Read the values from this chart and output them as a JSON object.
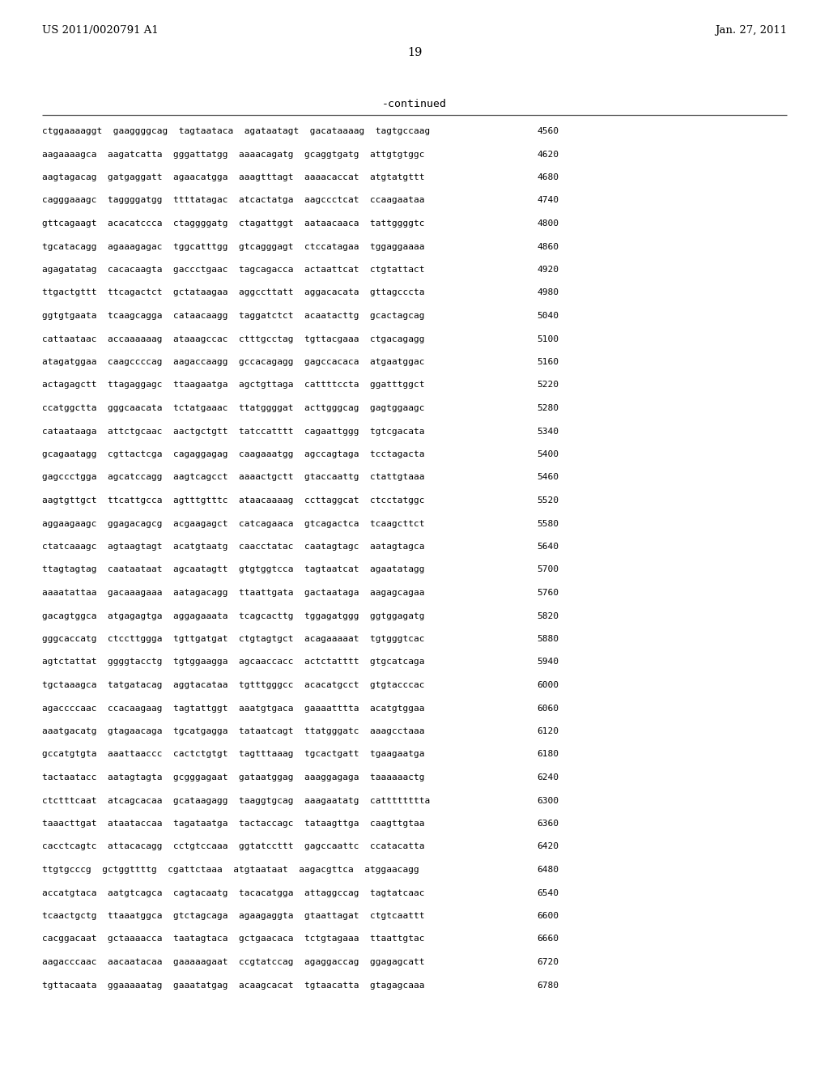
{
  "header_left": "US 2011/0020791 A1",
  "header_right": "Jan. 27, 2011",
  "page_number": "19",
  "continued_label": "-continued",
  "background_color": "#ffffff",
  "text_color": "#000000",
  "font_size_header": 9.5,
  "font_size_page": 10.5,
  "font_size_continued": 9.5,
  "font_size_sequence": 8.0,
  "sequence_lines": [
    [
      "ctggaaaaggt  gaaggggcag  tagtaataca  agataatagt  gacataaaag  tagtgccaag",
      "4560"
    ],
    [
      "aagaaaagca  aagatcatta  gggattatgg  aaaacagatg  gcaggtgatg  attgtgtggc",
      "4620"
    ],
    [
      "aagtagacag  gatgaggatt  agaacatgga  aaagtttagt  aaaacaccat  atgtatgttt",
      "4680"
    ],
    [
      "cagggaaagc  taggggatgg  ttttatagac  atcactatga  aagccctcat  ccaagaataa",
      "4740"
    ],
    [
      "gttcagaagt  acacatccca  ctaggggatg  ctagattggt  aataacaaca  tattggggtc",
      "4800"
    ],
    [
      "tgcatacagg  agaaagagac  tggcatttgg  gtcagggagt  ctccatagaa  tggaggaaaa",
      "4860"
    ],
    [
      "agagatatag  cacacaagta  gaccctgaac  tagcagacca  actaattcat  ctgtattact",
      "4920"
    ],
    [
      "ttgactgttt  ttcagactct  gctataagaa  aggccttatt  aggacacata  gttagcccta",
      "4980"
    ],
    [
      "ggtgtgaata  tcaagcagga  cataacaagg  taggatctct  acaatacttg  gcactagcag",
      "5040"
    ],
    [
      "cattaataac  accaaaaaag  ataaagccac  ctttgcctag  tgttacgaaa  ctgacagagg",
      "5100"
    ],
    [
      "atagatggaa  caagccccag  aagaccaagg  gccacagagg  gagccacaca  atgaatggac",
      "5160"
    ],
    [
      "actagagctt  ttagaggagc  ttaagaatga  agctgttaga  cattttccta  ggatttggct",
      "5220"
    ],
    [
      "ccatggctta  gggcaacata  tctatgaaac  ttatggggat  acttgggcag  gagtggaagc",
      "5280"
    ],
    [
      "cataataaga  attctgcaac  aactgctgtt  tatccatttt  cagaattggg  tgtcgacata",
      "5340"
    ],
    [
      "gcagaatagg  cgttactcga  cagaggagag  caagaaatgg  agccagtaga  tcctagacta",
      "5400"
    ],
    [
      "gagccctgga  agcatccagg  aagtcagcct  aaaactgctt  gtaccaattg  ctattgtaaa",
      "5460"
    ],
    [
      "aagtgttgct  ttcattgcca  agtttgtttc  ataacaaaag  ccttaggcat  ctcctatggc",
      "5520"
    ],
    [
      "aggaagaagc  ggagacagcg  acgaagagct  catcagaaca  gtcagactca  tcaagcttct",
      "5580"
    ],
    [
      "ctatcaaagc  agtaagtagt  acatgtaatg  caacctatac  caatagtagc  aatagtagca",
      "5640"
    ],
    [
      "ttagtagtag  caataataat  agcaatagtt  gtgtggtcca  tagtaatcat  agaatatagg",
      "5700"
    ],
    [
      "aaaatattaa  gacaaagaaa  aatagacagg  ttaattgata  gactaataga  aagagcagaa",
      "5760"
    ],
    [
      "gacagtggca  atgagagtga  aggagaaata  tcagcacttg  tggagatggg  ggtggagatg",
      "5820"
    ],
    [
      "gggcaccatg  ctccttggga  tgttgatgat  ctgtagtgct  acagaaaaat  tgtgggtcac",
      "5880"
    ],
    [
      "agtctattat  ggggtacctg  tgtggaagga  agcaaccacc  actctatttt  gtgcatcaga",
      "5940"
    ],
    [
      "tgctaaagca  tatgatacag  aggtacataa  tgtttgggcc  acacatgcct  gtgtacccac",
      "6000"
    ],
    [
      "agaccccaac  ccacaagaag  tagtattggt  aaatgtgaca  gaaaatttta  acatgtggaa",
      "6060"
    ],
    [
      "aaatgacatg  gtagaacaga  tgcatgagga  tataatcagt  ttatgggatc  aaagcctaaa",
      "6120"
    ],
    [
      "gccatgtgta  aaattaaccc  cactctgtgt  tagtttaaag  tgcactgatt  tgaagaatga",
      "6180"
    ],
    [
      "tactaatacc  aatagtagta  gcgggagaat  gataatggag  aaaggagaga  taaaaaactg",
      "6240"
    ],
    [
      "ctctttcaat  atcagcacaa  gcataagagg  taaggtgcag  aaagaatatg  catttttttta",
      "6300"
    ],
    [
      "taaacttgat  ataataccaa  tagataatga  tactaccagc  tataagttga  caagttgtaa",
      "6360"
    ],
    [
      "cacctcagtc  attacacagg  cctgtccaaa  ggtatccttt  gagccaattc  ccatacatta",
      "6420"
    ],
    [
      "ttgtgcccg  gctggttttg  cgattctaaa  atgtaataat  aagacgttca  atggaacagg",
      "6480"
    ],
    [
      "accatgtaca  aatgtcagca  cagtacaatg  tacacatgga  attaggccag  tagtatcaac",
      "6540"
    ],
    [
      "tcaactgctg  ttaaatggca  gtctagcaga  agaagaggta  gtaattagat  ctgtcaattt",
      "6600"
    ],
    [
      "cacggacaat  gctaaaacca  taatagtaca  gctgaacaca  tctgtagaaa  ttaattgtac",
      "6660"
    ],
    [
      "aagacccaac  aacaatacaa  gaaaaagaat  ccgtatccag  agaggaccag  ggagagcatt",
      "6720"
    ],
    [
      "tgttacaata  ggaaaaatag  gaaatatgag  acaagcacat  tgtaacatta  gtagagcaaa",
      "6780"
    ]
  ]
}
